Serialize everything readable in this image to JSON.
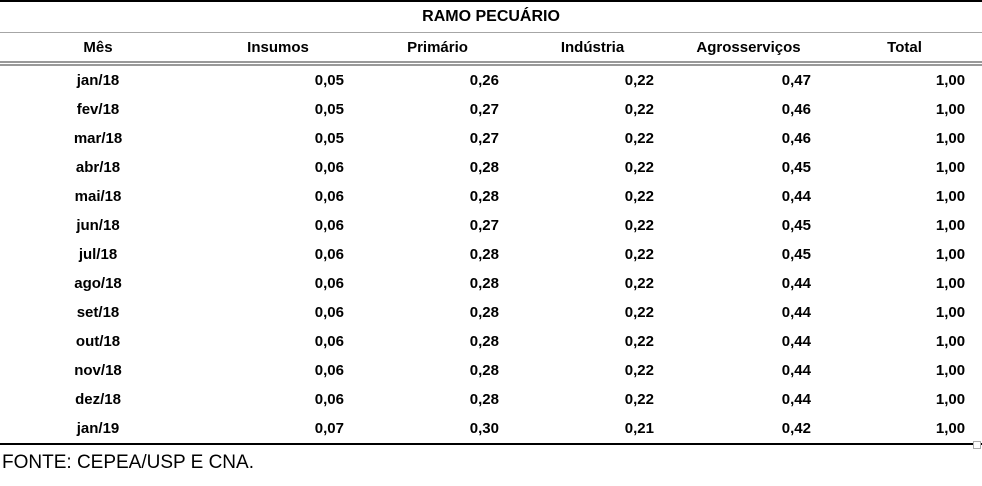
{
  "table": {
    "title": "RAMO PECUÁRIO",
    "columns": [
      "Mês",
      "Insumos",
      "Primário",
      "Indústria",
      "Agrosserviços",
      "Total"
    ],
    "rows": [
      {
        "month": "jan/18",
        "values": [
          "0,05",
          "0,26",
          "0,22",
          "0,47",
          "1,00"
        ]
      },
      {
        "month": "fev/18",
        "values": [
          "0,05",
          "0,27",
          "0,22",
          "0,46",
          "1,00"
        ]
      },
      {
        "month": "mar/18",
        "values": [
          "0,05",
          "0,27",
          "0,22",
          "0,46",
          "1,00"
        ]
      },
      {
        "month": "abr/18",
        "values": [
          "0,06",
          "0,28",
          "0,22",
          "0,45",
          "1,00"
        ]
      },
      {
        "month": "mai/18",
        "values": [
          "0,06",
          "0,28",
          "0,22",
          "0,44",
          "1,00"
        ]
      },
      {
        "month": "jun/18",
        "values": [
          "0,06",
          "0,27",
          "0,22",
          "0,45",
          "1,00"
        ]
      },
      {
        "month": "jul/18",
        "values": [
          "0,06",
          "0,28",
          "0,22",
          "0,45",
          "1,00"
        ]
      },
      {
        "month": "ago/18",
        "values": [
          "0,06",
          "0,28",
          "0,22",
          "0,44",
          "1,00"
        ]
      },
      {
        "month": "set/18",
        "values": [
          "0,06",
          "0,28",
          "0,22",
          "0,44",
          "1,00"
        ]
      },
      {
        "month": "out/18",
        "values": [
          "0,06",
          "0,28",
          "0,22",
          "0,44",
          "1,00"
        ]
      },
      {
        "month": "nov/18",
        "values": [
          "0,06",
          "0,28",
          "0,22",
          "0,44",
          "1,00"
        ]
      },
      {
        "month": "dez/18",
        "values": [
          "0,06",
          "0,28",
          "0,22",
          "0,44",
          "1,00"
        ]
      },
      {
        "month": "jan/19",
        "values": [
          "0,07",
          "0,30",
          "0,21",
          "0,42",
          "1,00"
        ]
      }
    ]
  },
  "footer": {
    "source_note": "FONTE: CEPEA/USP E CNA."
  },
  "colors": {
    "text": "#000000",
    "border_strong": "#000000",
    "border_light": "#a6a6a6",
    "background": "#ffffff"
  },
  "chart_data": {
    "type": "table",
    "title": "RAMO PECUÁRIO",
    "columns": [
      "Mês",
      "Insumos",
      "Primário",
      "Indústria",
      "Agrosserviços",
      "Total"
    ],
    "decimal_separator": ",",
    "rows": [
      [
        "jan/18",
        0.05,
        0.26,
        0.22,
        0.47,
        1.0
      ],
      [
        "fev/18",
        0.05,
        0.27,
        0.22,
        0.46,
        1.0
      ],
      [
        "mar/18",
        0.05,
        0.27,
        0.22,
        0.46,
        1.0
      ],
      [
        "abr/18",
        0.06,
        0.28,
        0.22,
        0.45,
        1.0
      ],
      [
        "mai/18",
        0.06,
        0.28,
        0.22,
        0.44,
        1.0
      ],
      [
        "jun/18",
        0.06,
        0.27,
        0.22,
        0.45,
        1.0
      ],
      [
        "jul/18",
        0.06,
        0.28,
        0.22,
        0.45,
        1.0
      ],
      [
        "ago/18",
        0.06,
        0.28,
        0.22,
        0.44,
        1.0
      ],
      [
        "set/18",
        0.06,
        0.28,
        0.22,
        0.44,
        1.0
      ],
      [
        "out/18",
        0.06,
        0.28,
        0.22,
        0.44,
        1.0
      ],
      [
        "nov/18",
        0.06,
        0.28,
        0.22,
        0.44,
        1.0
      ],
      [
        "dez/18",
        0.06,
        0.28,
        0.22,
        0.44,
        1.0
      ],
      [
        "jan/19",
        0.07,
        0.3,
        0.21,
        0.42,
        1.0
      ]
    ],
    "source": "FONTE: CEPEA/USP E CNA."
  }
}
